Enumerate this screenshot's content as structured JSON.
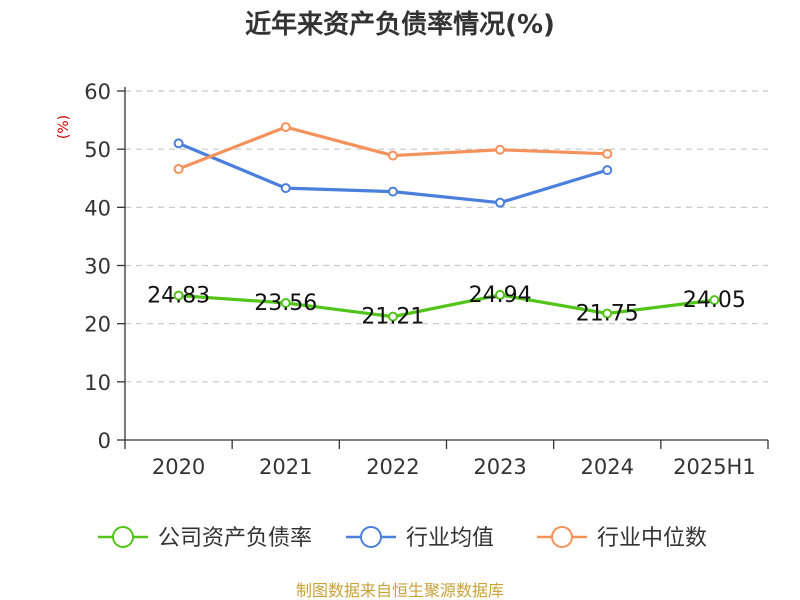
{
  "chart_data": {
    "type": "line",
    "title": "近年来资产负债率情况(%)",
    "ylabel": "(%)",
    "categories": [
      "2020",
      "2021",
      "2022",
      "2023",
      "2024",
      "2025H1"
    ],
    "ylim": [
      0,
      60
    ],
    "yticks": [
      0,
      10,
      20,
      30,
      40,
      50,
      60
    ],
    "grid": true,
    "legend_position": "bottom",
    "series": [
      {
        "name": "公司资产负债率",
        "color": "#52c41a",
        "values": [
          24.83,
          23.56,
          21.21,
          24.94,
          21.75,
          24.05
        ],
        "labels": [
          "24.83",
          "23.56",
          "21.21",
          "24.94",
          "21.75",
          "24.05"
        ]
      },
      {
        "name": "行业均值",
        "color": "#4a7fdc",
        "values": [
          51.0,
          43.3,
          42.7,
          40.8,
          46.4,
          null
        ]
      },
      {
        "name": "行业中位数",
        "color": "#f4925c",
        "values": [
          46.6,
          53.8,
          48.9,
          49.9,
          49.2,
          null
        ]
      }
    ]
  },
  "source": "制图数据来自恒生聚源数据库"
}
